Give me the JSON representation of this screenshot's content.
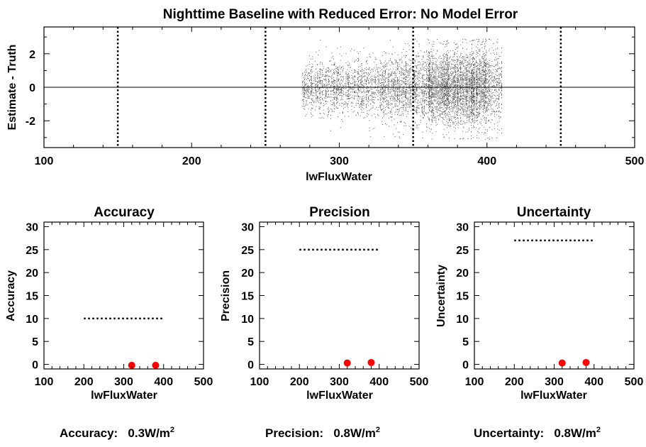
{
  "chart_data": [
    {
      "type": "scatter",
      "title": "Nighttime Baseline with Reduced Error: No Model Error",
      "xlabel": "lwFluxWater",
      "ylabel": "Estimate - Truth",
      "xlim": [
        100,
        500
      ],
      "ylim": [
        -3.6,
        3.6
      ],
      "xticks": [
        100,
        200,
        300,
        400,
        500
      ],
      "yticks": [
        -2,
        0,
        2
      ],
      "vertical_dotted_lines": [
        150,
        250,
        350,
        450
      ],
      "zero_line": 0,
      "point_cloud": {
        "x_range": [
          275,
          410
        ],
        "y_range": [
          -3.1,
          2.9
        ],
        "note_densest": "360-400"
      },
      "marker_color": "#555555"
    },
    {
      "type": "scatter",
      "title": "Accuracy",
      "xlabel": "lwFluxWater",
      "ylabel": "Accuracy",
      "xlim": [
        100,
        500
      ],
      "ylim": [
        -1,
        31
      ],
      "xticks": [
        100,
        200,
        300,
        400,
        500
      ],
      "yticks": [
        0,
        5,
        10,
        15,
        20,
        25,
        30
      ],
      "threshold": {
        "y": 10,
        "x_range": [
          200,
          400
        ]
      },
      "points": [
        {
          "x": 320,
          "y": -0.2
        },
        {
          "x": 380,
          "y": -0.2
        }
      ],
      "marker_color": "#ff0000"
    },
    {
      "type": "scatter",
      "title": "Precision",
      "xlabel": "lwFluxWater",
      "ylabel": "Precision",
      "xlim": [
        100,
        500
      ],
      "ylim": [
        -1,
        31
      ],
      "xticks": [
        100,
        200,
        300,
        400,
        500
      ],
      "yticks": [
        0,
        5,
        10,
        15,
        20,
        25,
        30
      ],
      "threshold": {
        "y": 25,
        "x_range": [
          200,
          400
        ]
      },
      "points": [
        {
          "x": 320,
          "y": 0.3
        },
        {
          "x": 380,
          "y": 0.4
        }
      ],
      "marker_color": "#ff0000"
    },
    {
      "type": "scatter",
      "title": "Uncertainty",
      "xlabel": "lwFluxWater",
      "ylabel": "Uncertainty",
      "xlim": [
        100,
        500
      ],
      "ylim": [
        -1,
        31
      ],
      "xticks": [
        100,
        200,
        300,
        400,
        500
      ],
      "yticks": [
        0,
        5,
        10,
        15,
        20,
        25,
        30
      ],
      "threshold": {
        "y": 27,
        "x_range": [
          200,
          400
        ]
      },
      "points": [
        {
          "x": 320,
          "y": 0.3
        },
        {
          "x": 380,
          "y": 0.4
        }
      ],
      "marker_color": "#ff0000"
    }
  ],
  "summary": {
    "accuracy_label": "Accuracy:",
    "accuracy_value": "0.3W/m",
    "precision_label": "Precision:",
    "precision_value": "0.8W/m",
    "uncertainty_label": "Uncertainty:",
    "uncertainty_value": "0.8W/m",
    "unit_exponent": "2"
  }
}
